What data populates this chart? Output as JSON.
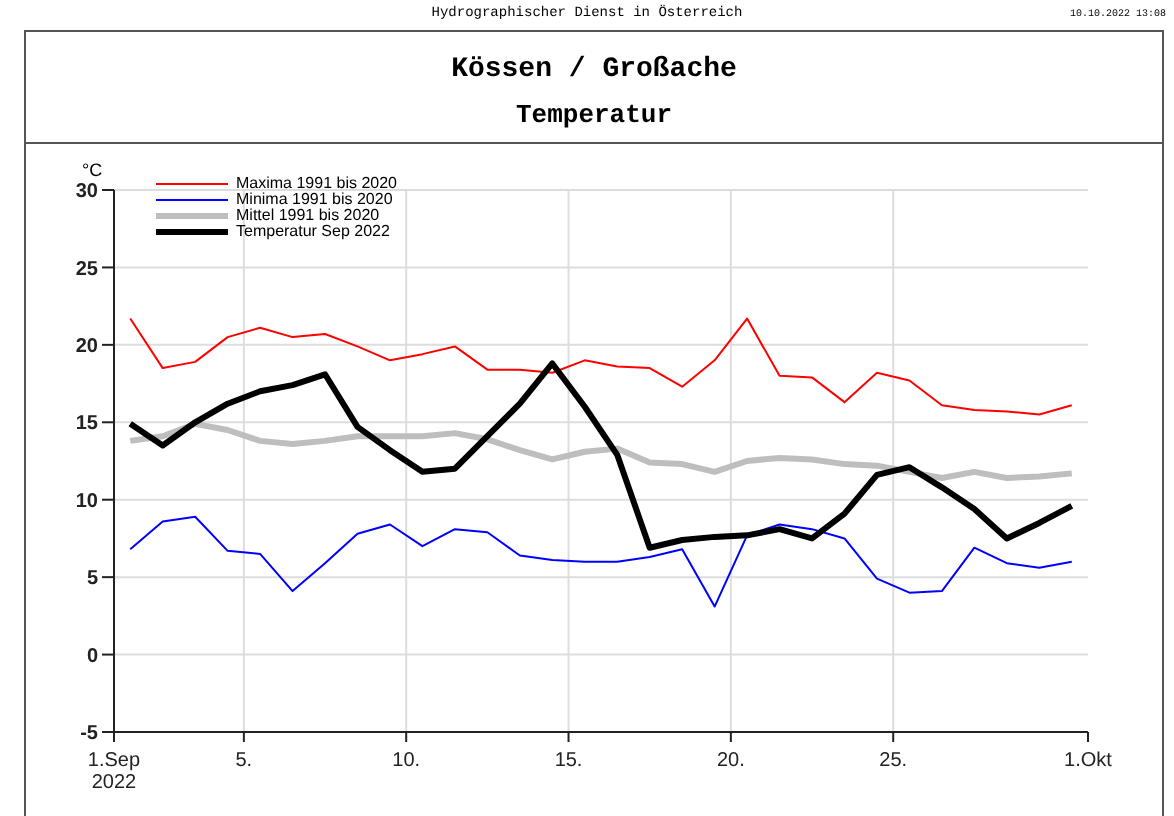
{
  "chart_data": {
    "type": "line",
    "title": "Kössen / Großache",
    "subtitle": "Temperatur",
    "ylabel": "°C",
    "annotations": [
      "Hydrographischer Dienst in Österreich",
      "10.10.2022 13:08"
    ],
    "x": [
      "2022-09-01T12:00",
      "2022-09-02T12:00",
      "2022-09-03T12:00",
      "2022-09-04T12:00",
      "2022-09-05T12:00",
      "2022-09-06T12:00",
      "2022-09-07T12:00",
      "2022-09-08T12:00",
      "2022-09-09T12:00",
      "2022-09-10T12:00",
      "2022-09-11T12:00",
      "2022-09-12T12:00",
      "2022-09-13T12:00",
      "2022-09-14T12:00",
      "2022-09-15T12:00",
      "2022-09-16T12:00",
      "2022-09-17T12:00",
      "2022-09-18T12:00",
      "2022-09-19T12:00",
      "2022-09-20T12:00",
      "2022-09-21T12:00",
      "2022-09-22T12:00",
      "2022-09-23T12:00",
      "2022-09-24T12:00",
      "2022-09-25T12:00",
      "2022-09-26T12:00",
      "2022-09-27T12:00",
      "2022-09-28T12:00",
      "2022-09-29T12:00",
      "2022-09-30T12:00"
    ],
    "xlim": [
      "2022-09-01",
      "2022-10-01"
    ],
    "xticks": [
      {
        "value": "2022-09-01",
        "label": "1.Sep\n2022"
      },
      {
        "value": "2022-09-05",
        "label": "5."
      },
      {
        "value": "2022-09-10",
        "label": "10."
      },
      {
        "value": "2022-09-15",
        "label": "15."
      },
      {
        "value": "2022-09-20",
        "label": "20."
      },
      {
        "value": "2022-09-25",
        "label": "25."
      },
      {
        "value": "2022-10-01",
        "label": "1.Okt"
      }
    ],
    "ylim": [
      -5,
      30
    ],
    "yticks": [
      -5,
      0,
      5,
      10,
      15,
      20,
      25,
      30
    ],
    "grid": true,
    "legend": "top left",
    "marker": "none",
    "line_style": "solid",
    "series": [
      {
        "name": "Maxima 1991 bis 2020",
        "color": "#ff0000",
        "values": [
          21.7,
          18.5,
          18.9,
          20.5,
          21.1,
          20.5,
          20.7,
          19.9,
          19.0,
          19.4,
          19.9,
          18.4,
          18.4,
          18.2,
          19.0,
          18.6,
          18.5,
          17.3,
          19.0,
          21.7,
          18.0,
          17.9,
          16.3,
          18.2,
          17.7,
          16.1,
          15.8,
          15.7,
          15.5,
          16.1
        ]
      },
      {
        "name": "Minima 1991 bis 2020",
        "color": "#0000ff",
        "values": [
          6.8,
          8.6,
          8.9,
          6.7,
          6.5,
          4.1,
          5.9,
          7.8,
          8.4,
          7.0,
          8.1,
          7.9,
          6.4,
          6.1,
          6.0,
          6.0,
          6.3,
          6.8,
          3.1,
          7.7,
          8.4,
          8.1,
          7.5,
          4.9,
          4.0,
          4.1,
          6.9,
          5.9,
          5.6,
          6.0
        ]
      },
      {
        "name": "Mittel 1991 bis 2020",
        "color": "#bebebe",
        "values": [
          13.8,
          14.1,
          14.9,
          14.5,
          13.8,
          13.6,
          13.8,
          14.1,
          14.1,
          14.1,
          14.3,
          13.9,
          13.2,
          12.6,
          13.1,
          13.3,
          12.4,
          12.3,
          11.8,
          12.5,
          12.7,
          12.6,
          12.3,
          12.2,
          11.8,
          11.4,
          11.8,
          11.4,
          11.5,
          11.7
        ]
      },
      {
        "name": "Temperatur Sep 2022",
        "color": "#000000",
        "values": [
          14.9,
          13.5,
          15.0,
          16.2,
          17.0,
          17.4,
          18.1,
          14.7,
          13.2,
          11.8,
          12.0,
          14.1,
          16.2,
          18.8,
          16.0,
          12.9,
          6.9,
          7.4,
          7.6,
          7.7,
          8.1,
          7.5,
          9.1,
          11.6,
          12.1,
          10.8,
          9.4,
          7.5,
          8.5,
          9.6
        ]
      }
    ]
  }
}
